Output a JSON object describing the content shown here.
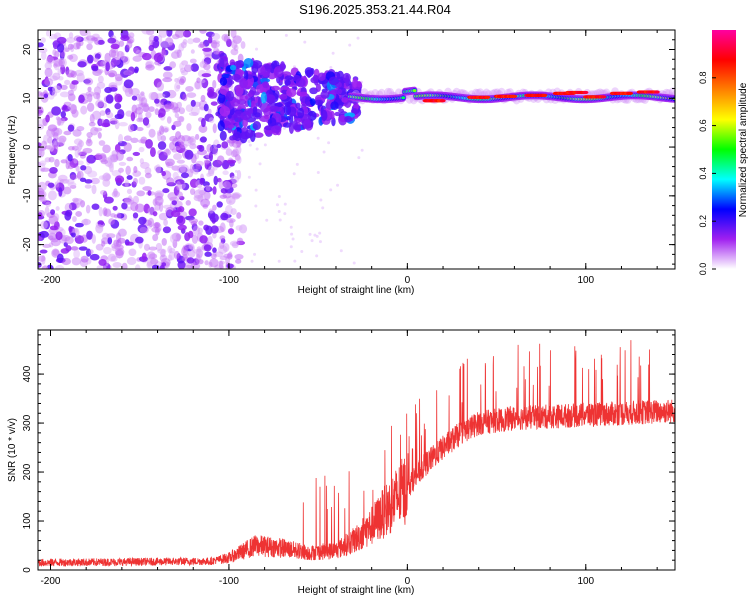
{
  "title": "S196.2025.353.21.44.R04",
  "colorbar": {
    "label": "Normalized spectral amplitude",
    "ticks": [
      "0.0",
      "0.2",
      "0.4",
      "0.6",
      "0.8"
    ],
    "tick_values": [
      0.0,
      0.2,
      0.4,
      0.6,
      0.8
    ],
    "range": [
      0,
      1
    ],
    "colors": [
      "#ffffff",
      "#a020f0",
      "#0000ff",
      "#00ffff",
      "#00ff00",
      "#ffff00",
      "#ff8000",
      "#ff0000",
      "#ff00a0"
    ]
  },
  "chart_data": [
    {
      "type": "heatmap",
      "xlabel": "Height of straight line (km)",
      "ylabel": "Frequency (Hz)",
      "xlim": [
        -207,
        150
      ],
      "ylim": [
        -25,
        24
      ],
      "xticks": [
        -200,
        -100,
        0,
        100
      ],
      "yticks": [
        -20,
        -10,
        0,
        10,
        20
      ],
      "grid": false,
      "description_series": [
        {
          "name": "scattered noise",
          "x_range": [
            -207,
            -100
          ],
          "y_range": [
            -25,
            24
          ],
          "intensity": 0.12
        },
        {
          "name": "dispersed band",
          "x_range": [
            -105,
            -30
          ],
          "y_range": [
            2,
            18
          ],
          "intensity": 0.2
        },
        {
          "name": "narrow band",
          "x_range": [
            -30,
            150
          ],
          "y_center": [
            9.5,
            11
          ],
          "intensity": 0.9
        }
      ]
    },
    {
      "type": "line",
      "xlabel": "Height of straight line (km)",
      "ylabel": "SNR (10 * v/v)",
      "xlim": [
        -207,
        150
      ],
      "ylim": [
        0,
        490
      ],
      "xticks": [
        -200,
        -100,
        0,
        100
      ],
      "yticks": [
        0,
        100,
        200,
        300,
        400
      ],
      "grid": false,
      "series": [
        {
          "color": "#ee3333",
          "trend_x": [
            -207,
            -110,
            -100,
            -85,
            -70,
            -55,
            -40,
            -30,
            -20,
            -10,
            0,
            10,
            20,
            30,
            40,
            60,
            90,
            120,
            150
          ],
          "trend_y": [
            15,
            18,
            25,
            50,
            45,
            35,
            40,
            60,
            90,
            130,
            170,
            215,
            250,
            280,
            300,
            310,
            315,
            320,
            325
          ]
        }
      ]
    }
  ]
}
